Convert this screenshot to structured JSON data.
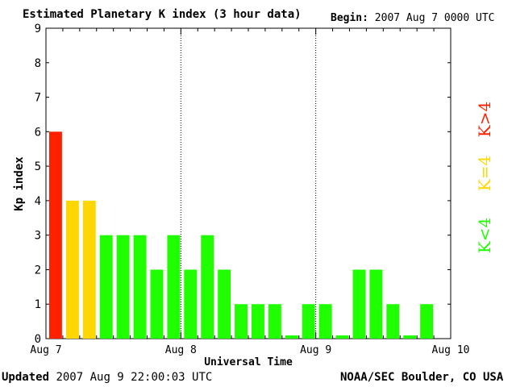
{
  "header": {
    "title": "Estimated Planetary K index (3 hour data)",
    "begin_label": "Begin:",
    "begin_value": "2007 Aug 7 0000 UTC"
  },
  "footer": {
    "updated_label": "Updated",
    "updated_value": "2007 Aug  9 22:00:03 UTC",
    "org": "NOAA/SEC Boulder, CO USA"
  },
  "legend": {
    "items": [
      {
        "label": "K>4",
        "color": "#ff2000"
      },
      {
        "label": "K=4",
        "color": "#ffd700"
      },
      {
        "label": "K<4",
        "color": "#20ff00"
      }
    ]
  },
  "chart_data": {
    "type": "bar",
    "title": "Estimated Planetary K index (3 hour data)",
    "xlabel": "Universal Time",
    "ylabel": "Kp index",
    "ylim": [
      0,
      9
    ],
    "yticks": [
      0,
      1,
      2,
      3,
      4,
      5,
      6,
      7,
      8,
      9
    ],
    "x_tick_labels": [
      "Aug 7",
      "Aug 8",
      "Aug 9",
      "Aug 10"
    ],
    "day_dividers": [
      "Aug 8",
      "Aug 9"
    ],
    "interval_hours": 3,
    "values": [
      6,
      4,
      4,
      3,
      3,
      3,
      2,
      3,
      2,
      3,
      2,
      1,
      1,
      1,
      0,
      1,
      1,
      0,
      2,
      2,
      1,
      0,
      1
    ],
    "colors": {
      "above": "#ff2000",
      "equal": "#ffd700",
      "below": "#20ff00"
    }
  }
}
